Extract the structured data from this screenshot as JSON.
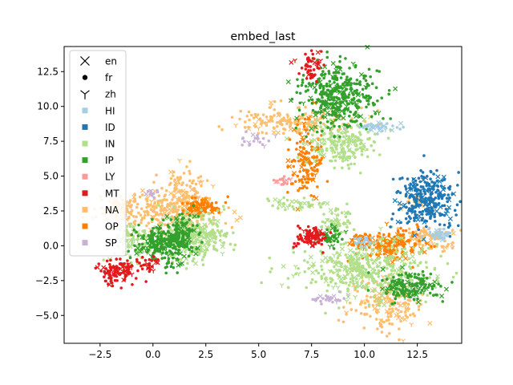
{
  "chart_data": {
    "type": "scatter",
    "title": "embed_last",
    "xlabel": "",
    "ylabel": "",
    "xlim": [
      -4.2,
      14.6
    ],
    "ylim": [
      -7.0,
      14.3
    ],
    "xticks": [
      -2.5,
      0.0,
      2.5,
      5.0,
      7.5,
      10.0,
      12.5
    ],
    "xtick_labels": [
      "−2.5",
      "0.0",
      "2.5",
      "5.0",
      "7.5",
      "10.0",
      "12.5"
    ],
    "yticks": [
      -5.0,
      -2.5,
      0.0,
      2.5,
      5.0,
      7.5,
      10.0,
      12.5
    ],
    "ytick_labels": [
      "−5.0",
      "−2.5",
      "0.0",
      "2.5",
      "5.0",
      "7.5",
      "10.0",
      "12.5"
    ],
    "grid": false,
    "legend_placement": "upper-left",
    "legend_markers": [
      {
        "label": "en",
        "marker": "x"
      },
      {
        "label": "fr",
        "marker": "dot"
      },
      {
        "label": "zh",
        "marker": "tri_down"
      }
    ],
    "legend_categories": [
      {
        "label": "HI",
        "color": "#a6cee3"
      },
      {
        "label": "ID",
        "color": "#1f78b4"
      },
      {
        "label": "IN",
        "color": "#b2df8a"
      },
      {
        "label": "IP",
        "color": "#33a02c"
      },
      {
        "label": "LY",
        "color": "#fb9a99"
      },
      {
        "label": "MT",
        "color": "#e31a1c"
      },
      {
        "label": "NA",
        "color": "#fdbf6f"
      },
      {
        "label": "OP",
        "color": "#ff7f00"
      },
      {
        "label": "SP",
        "color": "#cab2d6"
      }
    ],
    "clusters": [
      {
        "category": "NA",
        "cx": 0.8,
        "cy": 2.6,
        "sx": 1.2,
        "sy": 0.8,
        "n": 260
      },
      {
        "category": "NA",
        "cx": 1.6,
        "cy": 3.9,
        "sx": 0.5,
        "sy": 0.8,
        "n": 90
      },
      {
        "category": "NA",
        "cx": -1.8,
        "cy": 2.6,
        "sx": 0.6,
        "sy": 0.5,
        "n": 60
      },
      {
        "category": "NA",
        "cx": 6.6,
        "cy": 8.9,
        "sx": 1.3,
        "sy": 0.5,
        "n": 180
      },
      {
        "category": "NA",
        "cx": 11.0,
        "cy": -4.2,
        "sx": 0.9,
        "sy": 1.0,
        "n": 170
      },
      {
        "category": "NA",
        "cx": 12.9,
        "cy": 0.6,
        "sx": 0.8,
        "sy": 0.4,
        "n": 100
      },
      {
        "category": "NA",
        "cx": 12.3,
        "cy": 3.1,
        "sx": 0.3,
        "sy": 0.3,
        "n": 20
      },
      {
        "category": "OP",
        "cx": 2.3,
        "cy": 2.8,
        "sx": 0.5,
        "sy": 0.3,
        "n": 90
      },
      {
        "category": "OP",
        "cx": 7.3,
        "cy": 6.1,
        "sx": 0.4,
        "sy": 1.3,
        "n": 140
      },
      {
        "category": "OP",
        "cx": 11.3,
        "cy": 0.0,
        "sx": 0.7,
        "sy": 0.6,
        "n": 160
      },
      {
        "category": "OP",
        "cx": 9.8,
        "cy": 0.3,
        "sx": 0.3,
        "sy": 0.3,
        "n": 40
      },
      {
        "category": "IN",
        "cx": 1.9,
        "cy": 0.6,
        "sx": 0.8,
        "sy": 0.8,
        "n": 300
      },
      {
        "category": "IN",
        "cx": -1.0,
        "cy": 0.4,
        "sx": 0.6,
        "sy": 0.8,
        "n": 90
      },
      {
        "category": "IN",
        "cx": 8.9,
        "cy": 7.3,
        "sx": 0.8,
        "sy": 0.8,
        "n": 200
      },
      {
        "category": "IN",
        "cx": 10.1,
        "cy": -1.8,
        "sx": 1.6,
        "sy": 1.0,
        "n": 420
      },
      {
        "category": "IN",
        "cx": 8.7,
        "cy": 1.6,
        "sx": 0.4,
        "sy": 0.5,
        "n": 60
      },
      {
        "category": "IN",
        "cx": 6.8,
        "cy": 3.0,
        "sx": 0.8,
        "sy": 0.2,
        "n": 40
      },
      {
        "category": "IP",
        "cx": 0.5,
        "cy": 0.1,
        "sx": 0.6,
        "sy": 0.6,
        "n": 240
      },
      {
        "category": "IP",
        "cx": 1.3,
        "cy": 0.9,
        "sx": 0.4,
        "sy": 0.9,
        "n": 100
      },
      {
        "category": "IP",
        "cx": 8.8,
        "cy": 10.6,
        "sx": 0.9,
        "sy": 1.2,
        "n": 380
      },
      {
        "category": "IP",
        "cx": 12.2,
        "cy": -2.9,
        "sx": 0.7,
        "sy": 0.5,
        "n": 160
      },
      {
        "category": "IP",
        "cx": 8.4,
        "cy": 0.7,
        "sx": 0.3,
        "sy": 0.4,
        "n": 40
      },
      {
        "category": "ID",
        "cx": 12.9,
        "cy": 3.4,
        "sx": 0.6,
        "sy": 1.0,
        "n": 300
      },
      {
        "category": "MT",
        "cx": -1.7,
        "cy": -1.8,
        "sx": 0.5,
        "sy": 0.4,
        "n": 110
      },
      {
        "category": "MT",
        "cx": -0.2,
        "cy": -1.4,
        "sx": 0.2,
        "sy": 0.3,
        "n": 25
      },
      {
        "category": "MT",
        "cx": 7.5,
        "cy": 0.6,
        "sx": 0.35,
        "sy": 0.35,
        "n": 90
      },
      {
        "category": "MT",
        "cx": 7.5,
        "cy": 13.0,
        "sx": 0.3,
        "sy": 0.5,
        "n": 50
      },
      {
        "category": "HI",
        "cx": 10.7,
        "cy": 8.5,
        "sx": 0.6,
        "sy": 0.2,
        "n": 40
      },
      {
        "category": "HI",
        "cx": 13.6,
        "cy": 0.8,
        "sx": 0.3,
        "sy": 0.2,
        "n": 40
      },
      {
        "category": "HI",
        "cx": 9.9,
        "cy": 0.3,
        "sx": 0.3,
        "sy": 0.2,
        "n": 20
      },
      {
        "category": "SP",
        "cx": 8.3,
        "cy": -3.8,
        "sx": 0.4,
        "sy": 0.2,
        "n": 30
      },
      {
        "category": "SP",
        "cx": 4.8,
        "cy": 7.8,
        "sx": 0.4,
        "sy": 0.3,
        "n": 20
      },
      {
        "category": "SP",
        "cx": -0.1,
        "cy": 3.8,
        "sx": 0.2,
        "sy": 0.2,
        "n": 12
      },
      {
        "category": "LY",
        "cx": 6.2,
        "cy": 4.7,
        "sx": 0.2,
        "sy": 0.2,
        "n": 15
      }
    ]
  }
}
